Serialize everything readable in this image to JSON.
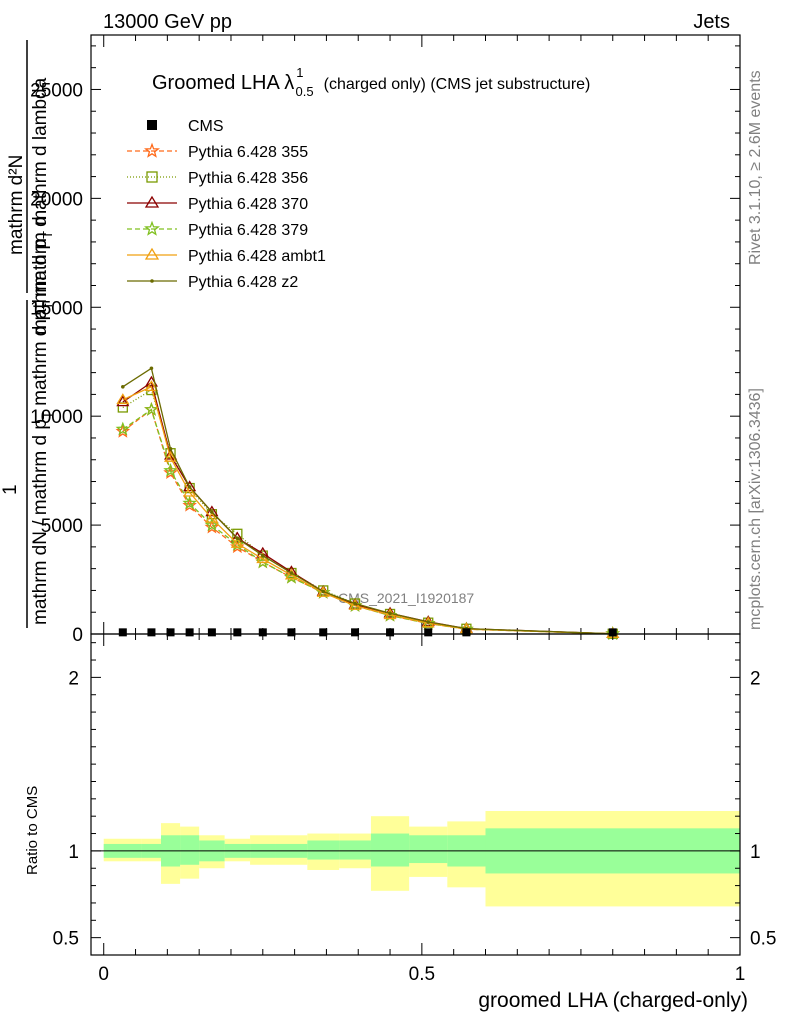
{
  "header": {
    "left": "13000 GeV pp",
    "right": "Jets"
  },
  "side_text": {
    "rivet": "Rivet 3.1.10, ≥ 2.6M events",
    "mcplots": "mcplots.cern.ch [arXiv:1306.3436]"
  },
  "watermark": "CMS_2021_I1920187",
  "plot_title": {
    "main": "Groomed LHA λ",
    "sup": "1",
    "sub": "0.5",
    "tail": "(charged only) (CMS jet substructure)"
  },
  "ylabel_main": {
    "line1": "mathrm d²N",
    "line2": "mathrm d p",
    "line2_sub": "T",
    "line2_tail": " mathrm d lambda",
    "frac_num": "1",
    "line3": "mathrm dN / mathrm d p",
    "line3_sub": "T",
    "line3_tail": " mathrm d p",
    "line3_sub2": "T",
    "line3_tail2": " mathrm d"
  },
  "ylabel_ratio": "Ratio to CMS",
  "xlabel": "groomed LHA (charged-only)",
  "legend": [
    {
      "label": "CMS",
      "color": "#000000",
      "marker": "square-filled",
      "dash": ""
    },
    {
      "label": "Pythia 6.428 355",
      "color": "#ff6a1a",
      "marker": "star",
      "dash": "5,3"
    },
    {
      "label": "Pythia 6.428 356",
      "color": "#7a9a00",
      "marker": "square-open",
      "dash": "1,2"
    },
    {
      "label": "Pythia 6.428 370",
      "color": "#8b0000",
      "marker": "triangle",
      "dash": ""
    },
    {
      "label": "Pythia 6.428 379",
      "color": "#80c020",
      "marker": "star",
      "dash": "5,3"
    },
    {
      "label": "Pythia 6.428 ambt1",
      "color": "#f0a010",
      "marker": "triangle",
      "dash": ""
    },
    {
      "label": "Pythia 6.428 z2",
      "color": "#6b6b00",
      "marker": "dot",
      "dash": ""
    }
  ],
  "chart_data": {
    "type": "line",
    "main": {
      "xlim": [
        -0.02,
        1.0
      ],
      "ylim": [
        0,
        27500
      ],
      "yticks": [
        0,
        5000,
        10000,
        15000,
        20000,
        25000
      ],
      "ytick_labels": [
        "0",
        "5000",
        "10000",
        "15000",
        "20000",
        "25000"
      ],
      "x": [
        0.03,
        0.075,
        0.105,
        0.135,
        0.17,
        0.21,
        0.25,
        0.295,
        0.345,
        0.395,
        0.45,
        0.51,
        0.57,
        0.8
      ],
      "data": [
        30,
        30,
        30,
        30,
        30,
        30,
        30,
        30,
        30,
        30,
        30,
        30,
        30,
        30
      ],
      "series": [
        {
          "name": "Pythia 6.428 355",
          "values": [
            9300,
            10300,
            7400,
            5900,
            4900,
            4000,
            3300,
            2600,
            1900,
            1300,
            850,
            480,
            220,
            10
          ]
        },
        {
          "name": "Pythia 6.428 356",
          "values": [
            10400,
            11200,
            8300,
            6700,
            5500,
            4600,
            3600,
            2800,
            2000,
            1400,
            920,
            520,
            240,
            10
          ]
        },
        {
          "name": "Pythia 6.428 370",
          "values": [
            10650,
            11550,
            8200,
            6750,
            5600,
            4400,
            3700,
            2850,
            1950,
            1350,
            950,
            560,
            250,
            10
          ]
        },
        {
          "name": "Pythia 6.428 379",
          "values": [
            9400,
            10300,
            7500,
            6000,
            5000,
            4100,
            3300,
            2600,
            1900,
            1300,
            850,
            480,
            220,
            10
          ]
        },
        {
          "name": "Pythia 6.428 ambt1",
          "values": [
            10750,
            11350,
            8100,
            6500,
            5300,
            4150,
            3450,
            2700,
            1900,
            1300,
            880,
            500,
            230,
            10
          ]
        },
        {
          "name": "Pythia 6.428 z2",
          "values": [
            11350,
            12200,
            8500,
            6750,
            5600,
            4400,
            3600,
            2800,
            1950,
            1400,
            950,
            550,
            250,
            10
          ]
        }
      ]
    },
    "ratio": {
      "ylim": [
        0.4,
        2.25
      ],
      "yticks": [
        0.5,
        1,
        2
      ],
      "ytick_labels": [
        "0.5",
        "1",
        "2"
      ],
      "xticks": [
        0,
        0.5,
        1
      ],
      "xtick_labels": [
        "0",
        "0.5",
        "1"
      ],
      "bins": [
        0,
        0.06,
        0.09,
        0.12,
        0.15,
        0.19,
        0.23,
        0.27,
        0.32,
        0.37,
        0.42,
        0.48,
        0.54,
        0.6,
        1.0
      ],
      "stat_band": [
        [
          0.96,
          1.04
        ],
        [
          0.96,
          1.04
        ],
        [
          0.91,
          1.09
        ],
        [
          0.92,
          1.09
        ],
        [
          0.94,
          1.06
        ],
        [
          0.96,
          1.04
        ],
        [
          0.96,
          1.04
        ],
        [
          0.96,
          1.04
        ],
        [
          0.95,
          1.06
        ],
        [
          0.95,
          1.06
        ],
        [
          0.91,
          1.1
        ],
        [
          0.93,
          1.09
        ],
        [
          0.91,
          1.09
        ],
        [
          0.87,
          1.13
        ]
      ],
      "total_band": [
        [
          0.94,
          1.07
        ],
        [
          0.94,
          1.07
        ],
        [
          0.81,
          1.16
        ],
        [
          0.84,
          1.14
        ],
        [
          0.9,
          1.09
        ],
        [
          0.94,
          1.07
        ],
        [
          0.92,
          1.09
        ],
        [
          0.92,
          1.09
        ],
        [
          0.89,
          1.1
        ],
        [
          0.9,
          1.1
        ],
        [
          0.77,
          1.2
        ],
        [
          0.85,
          1.14
        ],
        [
          0.79,
          1.17
        ],
        [
          0.68,
          1.23
        ]
      ]
    }
  },
  "colors": {
    "stat_band": "#99ff99",
    "total_band": "#ffff99"
  }
}
